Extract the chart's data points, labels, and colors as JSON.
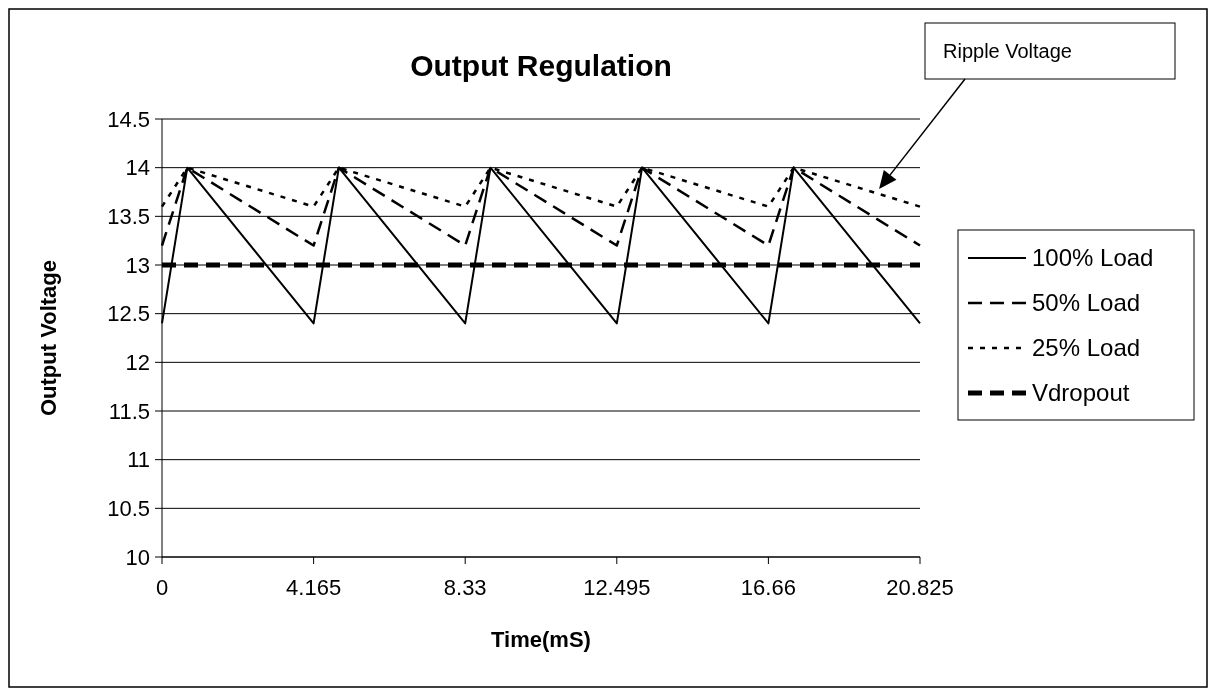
{
  "chart_data": {
    "type": "line",
    "title": "Output Regulation",
    "xlabel": "Time(mS)",
    "ylabel": "Output Voltage",
    "xlim": [
      0,
      20.825
    ],
    "xticks": [
      0,
      4.165,
      8.33,
      12.495,
      16.66,
      20.825
    ],
    "ylim": [
      10,
      14.5
    ],
    "yticks": [
      10,
      10.5,
      11,
      11.5,
      12,
      12.5,
      13,
      13.5,
      14,
      14.5
    ],
    "grid": "y",
    "legend": "right",
    "annotations": [
      "Ripple Voltage"
    ],
    "series": [
      {
        "name": "100% Load",
        "color": "#000000",
        "line_style": "solid",
        "x": [
          0,
          0.694,
          4.165,
          4.859,
          8.33,
          9.024,
          12.495,
          13.189,
          16.66,
          17.354,
          20.825
        ],
        "values": [
          12.4,
          14,
          12.4,
          14,
          12.4,
          14,
          12.4,
          14,
          12.4,
          14,
          12.4
        ]
      },
      {
        "name": "50% Load",
        "color": "#000000",
        "line_style": "dashed",
        "x": [
          0,
          0.694,
          4.165,
          4.859,
          8.33,
          9.024,
          12.495,
          13.189,
          16.66,
          17.354,
          20.825
        ],
        "values": [
          13.2,
          14,
          13.2,
          14,
          13.2,
          14,
          13.2,
          14,
          13.2,
          14,
          13.2
        ]
      },
      {
        "name": "25% Load",
        "color": "#000000",
        "line_style": "dotted",
        "x": [
          0,
          0.694,
          4.165,
          4.859,
          8.33,
          9.024,
          12.495,
          13.189,
          16.66,
          17.354,
          20.825
        ],
        "values": [
          13.6,
          14,
          13.6,
          14,
          13.6,
          14,
          13.6,
          14,
          13.6,
          14,
          13.6
        ]
      }
    ],
    "ref_lines": [
      {
        "axis": "y",
        "value": 13,
        "label": "Vdropout",
        "color": "#000000",
        "line_style": "dashed"
      }
    ]
  }
}
